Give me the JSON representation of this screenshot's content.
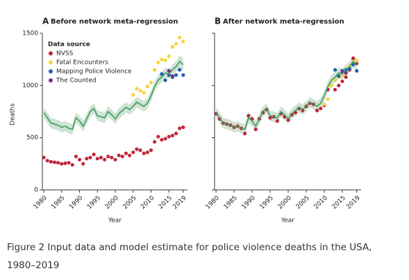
{
  "chart_data": [
    {
      "type": "line",
      "title": "Before network meta-regression",
      "panel_label": "A",
      "x_label": "Year",
      "y_label": "Deaths",
      "xlim": [
        1979.6,
        2020.2
      ],
      "ylim": [
        0,
        1500
      ],
      "xticks": [
        1980,
        1985,
        1990,
        1995,
        2000,
        2005,
        2010,
        2015,
        2019
      ],
      "yticks": [
        0,
        500,
        1000,
        1500
      ],
      "legend": {
        "title": "Data source",
        "position": "upper left"
      },
      "band": {
        "color": "#cfe3d3",
        "x": [
          1980,
          1981,
          1982,
          1983,
          1984,
          1985,
          1986,
          1987,
          1988,
          1989,
          1990,
          1991,
          1992,
          1993,
          1994,
          1995,
          1996,
          1997,
          1998,
          1999,
          2000,
          2001,
          2002,
          2003,
          2004,
          2005,
          2006,
          2007,
          2008,
          2009,
          2010,
          2011,
          2012,
          2013,
          2014,
          2015,
          2016,
          2017,
          2018,
          2019
        ],
        "lower": [
          690,
          640,
          590,
          580,
          570,
          550,
          560,
          540,
          530,
          640,
          610,
          560,
          630,
          700,
          730,
          660,
          650,
          640,
          700,
          670,
          630,
          680,
          710,
          740,
          720,
          750,
          790,
          770,
          750,
          780,
          850,
          940,
          1000,
          1030,
          1070,
          1060,
          1100,
          1130,
          1170,
          1140
        ],
        "upper": [
          790,
          740,
          690,
          680,
          670,
          650,
          660,
          640,
          630,
          740,
          710,
          660,
          730,
          800,
          830,
          760,
          750,
          740,
          800,
          770,
          730,
          780,
          810,
          840,
          820,
          850,
          890,
          870,
          850,
          880,
          950,
          1040,
          1100,
          1130,
          1170,
          1160,
          1200,
          1230,
          1290,
          1260
        ]
      },
      "series": [
        {
          "name": "NVSS",
          "mode": "markers",
          "color": "#c0273d",
          "x": [
            1980,
            1981,
            1982,
            1983,
            1984,
            1985,
            1986,
            1987,
            1988,
            1989,
            1990,
            1991,
            1992,
            1993,
            1994,
            1995,
            1996,
            1997,
            1998,
            1999,
            2000,
            2001,
            2002,
            2003,
            2004,
            2005,
            2006,
            2007,
            2008,
            2009,
            2010,
            2011,
            2012,
            2013,
            2014,
            2015,
            2016,
            2017,
            2018,
            2019
          ],
          "values": [
            310,
            280,
            270,
            265,
            260,
            250,
            255,
            260,
            240,
            320,
            290,
            250,
            300,
            310,
            340,
            300,
            310,
            290,
            320,
            310,
            290,
            330,
            320,
            350,
            330,
            360,
            390,
            380,
            350,
            360,
            380,
            460,
            510,
            480,
            490,
            510,
            520,
            540,
            590,
            600
          ]
        },
        {
          "name": "Fatal Encounters",
          "mode": "markers",
          "color": "#f5d43a",
          "x": [
            2005,
            2006,
            2007,
            2008,
            2009,
            2010,
            2011,
            2012,
            2013,
            2014,
            2015,
            2016,
            2017,
            2018,
            2019
          ],
          "values": [
            910,
            970,
            950,
            930,
            990,
            1030,
            1150,
            1220,
            1250,
            1240,
            1280,
            1370,
            1400,
            1460,
            1420
          ]
        },
        {
          "name": "Mapping Police Violence",
          "mode": "markers",
          "color": "#1f5fb5",
          "x": [
            2013,
            2014,
            2015,
            2016,
            2017,
            2018,
            2019
          ],
          "values": [
            1110,
            1050,
            1100,
            1080,
            1100,
            1150,
            1100
          ]
        },
        {
          "name": "The Counted",
          "mode": "markers",
          "color": "#7b2d8e",
          "x": [
            2015,
            2016
          ],
          "values": [
            1140,
            1090
          ]
        },
        {
          "mode": "line",
          "color": "#3a9a5b",
          "x": [
            1980,
            1981,
            1982,
            1983,
            1984,
            1985,
            1986,
            1987,
            1988,
            1989,
            1990,
            1991,
            1992,
            1993,
            1994,
            1995,
            1996,
            1997,
            1998,
            1999,
            2000,
            2001,
            2002,
            2003,
            2004,
            2005,
            2006,
            2007,
            2008,
            2009,
            2010,
            2011,
            2012,
            2013,
            2014,
            2015,
            2016,
            2017,
            2018,
            2019
          ],
          "values": [
            740,
            690,
            640,
            630,
            620,
            600,
            610,
            590,
            580,
            690,
            660,
            610,
            680,
            750,
            780,
            710,
            700,
            690,
            750,
            720,
            680,
            730,
            760,
            790,
            770,
            800,
            840,
            820,
            800,
            830,
            900,
            990,
            1050,
            1080,
            1120,
            1110,
            1150,
            1180,
            1230,
            1200
          ]
        }
      ]
    },
    {
      "type": "line",
      "title": "After network meta-regression",
      "panel_label": "B",
      "x_label": "Year",
      "xlim": [
        1979.6,
        2020.2
      ],
      "ylim": [
        0,
        1500
      ],
      "xticks": [
        1980,
        1985,
        1990,
        1995,
        2000,
        2005,
        2010,
        2015,
        2019
      ],
      "yticks": [
        0,
        500,
        1000,
        1500
      ],
      "band": {
        "color": "#cfe3d3",
        "x": [
          1980,
          1981,
          1982,
          1983,
          1984,
          1985,
          1986,
          1987,
          1988,
          1989,
          1990,
          1991,
          1992,
          1993,
          1994,
          1995,
          1996,
          1997,
          1998,
          1999,
          2000,
          2001,
          2002,
          2003,
          2004,
          2005,
          2006,
          2007,
          2008,
          2009,
          2010,
          2011,
          2012,
          2013,
          2014,
          2015,
          2016,
          2017,
          2018,
          2019
        ],
        "lower": [
          690,
          640,
          590,
          580,
          570,
          550,
          560,
          540,
          530,
          640,
          610,
          560,
          630,
          700,
          730,
          660,
          650,
          640,
          700,
          670,
          630,
          680,
          710,
          740,
          720,
          750,
          790,
          770,
          750,
          780,
          850,
          940,
          1000,
          1030,
          1070,
          1060,
          1100,
          1130,
          1170,
          1140
        ],
        "upper": [
          790,
          740,
          690,
          680,
          670,
          650,
          660,
          640,
          630,
          740,
          710,
          660,
          730,
          800,
          830,
          760,
          750,
          740,
          800,
          770,
          730,
          780,
          810,
          840,
          820,
          850,
          890,
          870,
          850,
          880,
          950,
          1040,
          1100,
          1130,
          1170,
          1160,
          1200,
          1230,
          1290,
          1260
        ]
      },
      "series": [
        {
          "mode": "markers",
          "color": "#c0273d",
          "x": [
            1980,
            1981,
            1982,
            1983,
            1984,
            1985,
            1986,
            1987,
            1988,
            1989,
            1990,
            1991,
            1992,
            1993,
            1994,
            1995,
            1996,
            1997,
            1998,
            1999,
            2000,
            2001,
            2002,
            2003,
            2004,
            2005,
            2006,
            2007,
            2008,
            2009,
            2010,
            2011,
            2012,
            2013,
            2014,
            2015,
            2016,
            2017,
            2018,
            2019
          ],
          "values": [
            730,
            680,
            640,
            630,
            620,
            600,
            610,
            590,
            540,
            710,
            680,
            580,
            680,
            740,
            770,
            690,
            700,
            660,
            730,
            700,
            670,
            720,
            740,
            780,
            760,
            800,
            830,
            820,
            760,
            780,
            810,
            960,
            1000,
            960,
            1000,
            1040,
            1080,
            1150,
            1260,
            1210
          ]
        },
        {
          "mode": "markers",
          "color": "#f5d43a",
          "x": [
            2010,
            2011,
            2012,
            2013,
            2014,
            2015,
            2016,
            2017,
            2018,
            2019
          ],
          "values": [
            820,
            870,
            1000,
            1050,
            1080,
            1100,
            1150,
            1180,
            1220,
            1240
          ]
        },
        {
          "mode": "markers",
          "color": "#1f5fb5",
          "x": [
            2013,
            2014,
            2015,
            2016,
            2017,
            2018,
            2019
          ],
          "values": [
            1150,
            1090,
            1140,
            1150,
            1160,
            1200,
            1140
          ]
        },
        {
          "mode": "markers",
          "color": "#7b2d8e",
          "x": [
            2015,
            2016
          ],
          "values": [
            1130,
            1120
          ]
        },
        {
          "mode": "line",
          "color": "#3a9a5b",
          "x": [
            1980,
            1981,
            1982,
            1983,
            1984,
            1985,
            1986,
            1987,
            1988,
            1989,
            1990,
            1991,
            1992,
            1993,
            1994,
            1995,
            1996,
            1997,
            1998,
            1999,
            2000,
            2001,
            2002,
            2003,
            2004,
            2005,
            2006,
            2007,
            2008,
            2009,
            2010,
            2011,
            2012,
            2013,
            2014,
            2015,
            2016,
            2017,
            2018,
            2019
          ],
          "values": [
            740,
            690,
            640,
            630,
            620,
            600,
            610,
            590,
            580,
            690,
            660,
            610,
            680,
            750,
            780,
            710,
            700,
            690,
            750,
            720,
            680,
            730,
            760,
            790,
            770,
            800,
            840,
            820,
            800,
            830,
            900,
            990,
            1050,
            1080,
            1120,
            1110,
            1150,
            1180,
            1230,
            1200
          ]
        }
      ]
    }
  ],
  "caption": {
    "line1": "Figure 2  Input data and model estimate for police violence deaths in the USA,",
    "line2": "1980–2019"
  }
}
